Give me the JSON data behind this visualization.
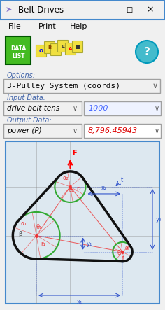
{
  "bg_color": "#f0f0f0",
  "diagram_bg": "#dde8f0",
  "title_bar": "Belt Drives",
  "menu_items": [
    "File",
    "Print",
    "Help"
  ],
  "options_label": "Options:",
  "options_value": "3-Pulley System (coords)",
  "input_label": "Input Data:",
  "input_dropdown": "drive belt tens",
  "input_value": "1000",
  "output_label": "Output Data:",
  "output_dropdown": "power (P)",
  "output_value": "8,796.45943",
  "output_color": "#dd0000",
  "belt_color": "#111111",
  "circle_color": "#33aa33",
  "line_color": "#ee3333",
  "dim_color": "#3355cc",
  "title_bg": "#f0f0f0",
  "window_border": "#4488cc",
  "input_value_color": "#4466ff"
}
